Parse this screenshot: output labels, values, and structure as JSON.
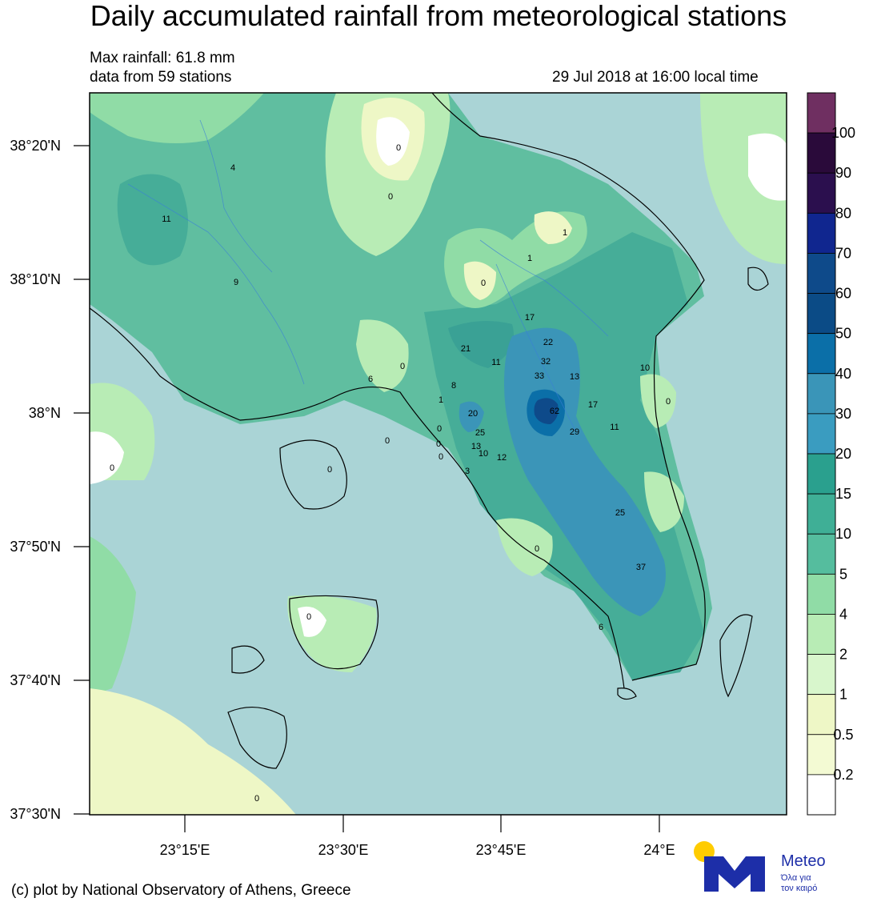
{
  "header": {
    "title": "Daily accumulated rainfall from meteorological stations",
    "max_rainfall": "Max rainfall: 61.8 mm",
    "stations": "data from 59 stations",
    "datetime": "29 Jul 2018 at 16:00 local time"
  },
  "axes": {
    "lat_labels": [
      "38°20'N",
      "38°10'N",
      "38°N",
      "37°50'N",
      "37°40'N",
      "37°30'N"
    ],
    "lon_labels": [
      "23°15'E",
      "23°30'E",
      "23°45'E",
      "24°E"
    ]
  },
  "legend": {
    "labels": [
      "100",
      "90",
      "80",
      "70",
      "60",
      "50",
      "40",
      "30",
      "20",
      "15",
      "10",
      "5",
      "4",
      "2",
      "1",
      "0.5",
      "0.2"
    ],
    "colors": [
      "#6f2f61",
      "#2a0a3a",
      "#2b0f4e",
      "#10268f",
      "#0e4a8a",
      "#0b4b86",
      "#0b6fa8",
      "#3a95b8",
      "#3a9cc0",
      "#2aa08e",
      "#3faf96",
      "#55bd9e",
      "#90dca6",
      "#b8ecb5",
      "#d8f6cc",
      "#eef7c6",
      "#f3fad3",
      "#ffffff"
    ]
  },
  "stations": [
    {
      "label": "0"
    },
    {
      "label": "4"
    },
    {
      "label": "0"
    },
    {
      "label": "11"
    },
    {
      "label": "1"
    },
    {
      "label": "1"
    },
    {
      "label": "9"
    },
    {
      "label": "0"
    },
    {
      "label": "17"
    },
    {
      "label": "22"
    },
    {
      "label": "21"
    },
    {
      "label": "11"
    },
    {
      "label": "32"
    },
    {
      "label": "33"
    },
    {
      "label": "13"
    },
    {
      "label": "10"
    },
    {
      "label": "0"
    },
    {
      "label": "6"
    },
    {
      "label": "8"
    },
    {
      "label": "1"
    },
    {
      "label": "17"
    },
    {
      "label": "0"
    },
    {
      "label": "20"
    },
    {
      "label": "62"
    },
    {
      "label": "11"
    },
    {
      "label": "29"
    },
    {
      "label": "25"
    },
    {
      "label": "0"
    },
    {
      "label": "0"
    },
    {
      "label": "13"
    },
    {
      "label": "10"
    },
    {
      "label": "12"
    },
    {
      "label": "0"
    },
    {
      "label": "0"
    },
    {
      "label": "3"
    },
    {
      "label": "0"
    },
    {
      "label": "25"
    },
    {
      "label": "0"
    },
    {
      "label": "37"
    },
    {
      "label": "6"
    },
    {
      "label": "0"
    },
    {
      "label": "0"
    },
    {
      "label": "0"
    }
  ],
  "footer": {
    "credit": "(c) plot by National Observatory of Athens, Greece",
    "logo_name": "Meteo",
    "logo_tagline_1": "Όλα για",
    "logo_tagline_2": "τον καιρό",
    "logo_sun_color": "#ffcc00",
    "logo_m_color": "#1d2ea8"
  }
}
